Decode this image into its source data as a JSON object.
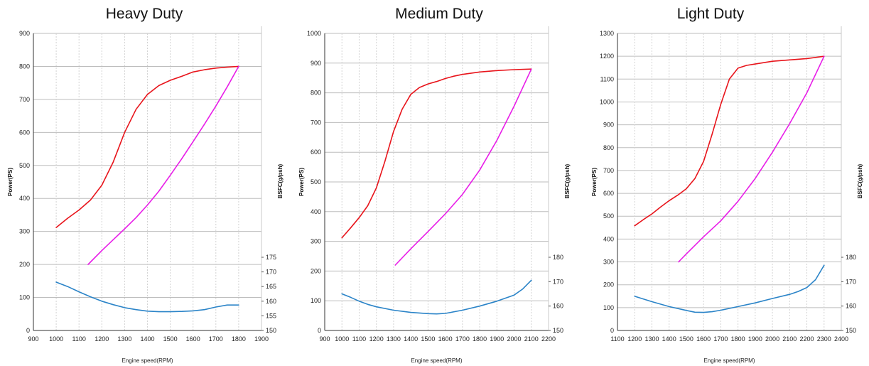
{
  "chart_data": [
    {
      "type": "line",
      "title": "Heavy Duty",
      "xlabel": "Engine speed(RPM)",
      "ylabel": "Power(PS)",
      "y2label": "BSFC(g/psh)",
      "xlim": [
        900,
        1900
      ],
      "xticks": [
        900,
        1000,
        1100,
        1200,
        1300,
        1400,
        1500,
        1600,
        1700,
        1800,
        1900
      ],
      "ylim": [
        0,
        900
      ],
      "yticks": [
        0,
        100,
        200,
        300,
        400,
        500,
        600,
        700,
        800,
        900
      ],
      "y2lim": [
        150,
        175
      ],
      "y2ticks": [
        150,
        155,
        160,
        165,
        170,
        175
      ],
      "grid": true,
      "series": [
        {
          "axis": "left",
          "color": "#e8141b",
          "x": [
            1000,
            1050,
            1100,
            1150,
            1200,
            1250,
            1300,
            1350,
            1400,
            1450,
            1500,
            1550,
            1600,
            1650,
            1700,
            1750,
            1800
          ],
          "y": [
            312,
            340,
            365,
            395,
            440,
            510,
            600,
            670,
            715,
            742,
            758,
            770,
            783,
            790,
            795,
            798,
            800
          ]
        },
        {
          "axis": "left",
          "color": "#e81ee8",
          "x": [
            1140,
            1200,
            1250,
            1300,
            1350,
            1400,
            1450,
            1500,
            1550,
            1600,
            1650,
            1700,
            1750,
            1800
          ],
          "y": [
            200,
            242,
            275,
            308,
            342,
            380,
            422,
            470,
            520,
            572,
            625,
            680,
            738,
            800
          ]
        },
        {
          "axis": "right",
          "color": "#2b84c8",
          "x": [
            1000,
            1050,
            1100,
            1150,
            1200,
            1250,
            1300,
            1350,
            1400,
            1450,
            1500,
            1550,
            1600,
            1650,
            1700,
            1750,
            1800
          ],
          "y": [
            166.5,
            165.0,
            163.2,
            161.5,
            160.0,
            158.8,
            157.8,
            157.1,
            156.6,
            156.4,
            156.4,
            156.5,
            156.7,
            157.1,
            158.0,
            158.7,
            158.7
          ]
        }
      ]
    },
    {
      "type": "line",
      "title": "Medium Duty",
      "xlabel": "Engine speed(RPM)",
      "ylabel": "Power(PS)",
      "y2label": "BSFC(g/psh)",
      "xlim": [
        900,
        2200
      ],
      "xticks": [
        900,
        1000,
        1100,
        1200,
        1300,
        1400,
        1500,
        1600,
        1700,
        1800,
        1900,
        2000,
        2100,
        2200
      ],
      "ylim": [
        0,
        1000
      ],
      "yticks": [
        0,
        100,
        200,
        300,
        400,
        500,
        600,
        700,
        800,
        900,
        1000
      ],
      "y2lim": [
        150,
        180
      ],
      "y2ticks": [
        150,
        160,
        170,
        180
      ],
      "grid": true,
      "series": [
        {
          "axis": "left",
          "color": "#e8141b",
          "x": [
            1000,
            1050,
            1100,
            1150,
            1200,
            1250,
            1300,
            1350,
            1400,
            1450,
            1500,
            1550,
            1600,
            1650,
            1700,
            1800,
            1900,
            2000,
            2100
          ],
          "y": [
            312,
            345,
            380,
            420,
            480,
            570,
            670,
            745,
            795,
            818,
            830,
            838,
            848,
            856,
            862,
            870,
            875,
            878,
            880
          ]
        },
        {
          "axis": "left",
          "color": "#e81ee8",
          "x": [
            1310,
            1400,
            1500,
            1600,
            1700,
            1800,
            1900,
            2000,
            2100
          ],
          "y": [
            220,
            275,
            333,
            392,
            458,
            540,
            640,
            755,
            880
          ]
        },
        {
          "axis": "right",
          "color": "#2b84c8",
          "x": [
            1000,
            1050,
            1100,
            1150,
            1200,
            1300,
            1400,
            1500,
            1550,
            1600,
            1700,
            1800,
            1900,
            2000,
            2050,
            2100
          ],
          "y": [
            165.0,
            163.6,
            162.0,
            160.7,
            159.7,
            158.3,
            157.4,
            156.9,
            156.8,
            157.0,
            158.3,
            160.0,
            162.0,
            164.5,
            167.0,
            170.6
          ]
        }
      ]
    },
    {
      "type": "line",
      "title": "Light Duty",
      "xlabel": "Engine speed(RPM)",
      "ylabel": "Power(PS)",
      "y2label": "BSFC(g/psh)",
      "xlim": [
        1100,
        2400
      ],
      "xticks": [
        1100,
        1200,
        1300,
        1400,
        1500,
        1600,
        1700,
        1800,
        1900,
        2000,
        2100,
        2200,
        2300,
        2400
      ],
      "ylim": [
        0,
        1300
      ],
      "yticks": [
        0,
        100,
        200,
        300,
        400,
        500,
        600,
        700,
        800,
        900,
        1000,
        1100,
        1200,
        1300
      ],
      "y2lim": [
        150,
        180
      ],
      "y2ticks": [
        150,
        160,
        170,
        180
      ],
      "grid": true,
      "series": [
        {
          "axis": "left",
          "color": "#e8141b",
          "x": [
            1200,
            1250,
            1300,
            1350,
            1400,
            1450,
            1500,
            1550,
            1600,
            1650,
            1700,
            1750,
            1800,
            1850,
            1900,
            2000,
            2100,
            2200,
            2300
          ],
          "y": [
            458,
            485,
            510,
            540,
            568,
            592,
            620,
            665,
            740,
            860,
            990,
            1100,
            1148,
            1160,
            1166,
            1178,
            1184,
            1190,
            1200
          ]
        },
        {
          "axis": "left",
          "color": "#e81ee8",
          "x": [
            1455,
            1500,
            1600,
            1700,
            1800,
            1900,
            2000,
            2100,
            2200,
            2300
          ],
          "y": [
            300,
            335,
            410,
            480,
            565,
            665,
            780,
            905,
            1040,
            1200
          ]
        },
        {
          "axis": "right",
          "color": "#2b84c8",
          "x": [
            1200,
            1300,
            1400,
            1500,
            1550,
            1600,
            1650,
            1700,
            1800,
            1900,
            2000,
            2100,
            2150,
            2200,
            2250,
            2300
          ],
          "y": [
            164.0,
            161.8,
            159.8,
            158.2,
            157.5,
            157.4,
            157.7,
            158.3,
            159.8,
            161.3,
            163.1,
            164.8,
            166.0,
            167.6,
            170.8,
            176.7
          ]
        }
      ]
    }
  ]
}
